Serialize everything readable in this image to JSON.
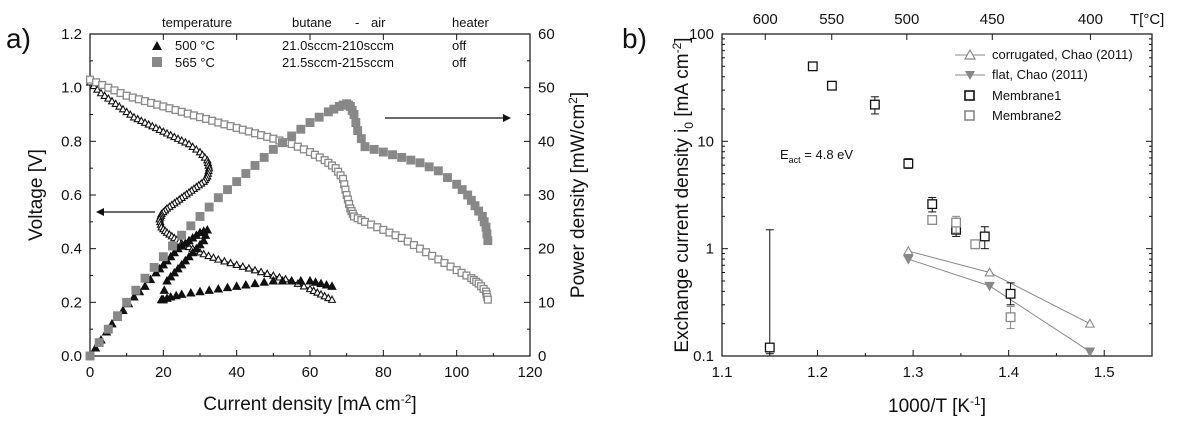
{
  "chart_data": [
    {
      "panel_label": "a)",
      "type": "scatter",
      "xlabel": "Current density [mA cm-2]",
      "xlabel_parts": [
        "Current density [mA cm",
        "-2",
        "]"
      ],
      "ylabel_left": "Voltage [V]",
      "ylabel_right": "Power density [mW/cm2]",
      "ylabel_right_parts": [
        "Power density [mW/cm",
        "2",
        "]"
      ],
      "xlim": [
        0,
        120
      ],
      "ylim_left": [
        0.0,
        1.2
      ],
      "ylim_right": [
        0,
        60
      ],
      "x_ticks": [
        "0",
        "20",
        "40",
        "60",
        "80",
        "100",
        "120"
      ],
      "y_left_ticks": [
        "0.0",
        "0.2",
        "0.4",
        "0.6",
        "0.8",
        "1.0",
        "1.2"
      ],
      "y_right_ticks": [
        "0",
        "10",
        "20",
        "30",
        "40",
        "50",
        "60"
      ],
      "legend": {
        "headers": [
          "temperature",
          "butane",
          "-",
          "air",
          "heater"
        ],
        "rows": [
          {
            "temperature": "500 °C",
            "flow": "21.0sccm-210sccm",
            "heater": "off",
            "marker": "triangle"
          },
          {
            "temperature": "565 °C",
            "flow": "21.5sccm-215sccm",
            "heater": "off",
            "marker": "square"
          }
        ]
      },
      "series": [
        {
          "temperature": "500 °C",
          "kind": "voltage",
          "axis": "left",
          "marker": "open-triangle",
          "x": [
            0,
            3,
            6,
            9,
            12,
            15,
            18,
            21,
            24,
            27,
            30,
            32,
            32.5,
            32,
            31,
            29,
            27,
            25,
            23,
            21,
            19.5,
            19,
            19.5,
            21,
            23,
            25,
            28,
            31,
            35,
            40,
            45,
            50,
            55,
            60,
            63,
            66
          ],
          "y": [
            1.02,
            0.98,
            0.95,
            0.92,
            0.89,
            0.87,
            0.85,
            0.83,
            0.81,
            0.79,
            0.76,
            0.73,
            0.7,
            0.67,
            0.65,
            0.63,
            0.61,
            0.59,
            0.57,
            0.55,
            0.53,
            0.51,
            0.48,
            0.46,
            0.44,
            0.42,
            0.4,
            0.38,
            0.36,
            0.34,
            0.32,
            0.3,
            0.28,
            0.25,
            0.23,
            0.21
          ]
        },
        {
          "temperature": "500 °C",
          "kind": "power",
          "axis": "right",
          "marker": "filled-triangle",
          "x": [
            0,
            3,
            6,
            9,
            12,
            15,
            18,
            20,
            22,
            24,
            26,
            28,
            30,
            32,
            31,
            29,
            27,
            25,
            23,
            21,
            19.5,
            20,
            22,
            25,
            30,
            35,
            40,
            45,
            50,
            55,
            60,
            63,
            66
          ],
          "y": [
            0,
            3,
            6,
            8.5,
            11,
            13,
            15.5,
            17,
            18.5,
            20,
            21,
            22,
            23,
            23.5,
            21.5,
            20,
            18.5,
            17,
            15.5,
            14,
            10.5,
            10.5,
            11,
            11.5,
            12,
            12.5,
            13,
            13.5,
            14,
            14,
            14,
            13.5,
            13
          ]
        },
        {
          "temperature": "565 °C",
          "kind": "voltage",
          "axis": "left",
          "marker": "open-square",
          "x": [
            0,
            5,
            10,
            15,
            20,
            25,
            30,
            35,
            40,
            45,
            50,
            55,
            60,
            64,
            67,
            69,
            70,
            71,
            72,
            75,
            80,
            85,
            90,
            95,
            100,
            104,
            106,
            108,
            108.5
          ],
          "y": [
            1.03,
            1.0,
            0.97,
            0.95,
            0.93,
            0.91,
            0.89,
            0.87,
            0.85,
            0.83,
            0.81,
            0.79,
            0.76,
            0.73,
            0.7,
            0.66,
            0.6,
            0.55,
            0.52,
            0.5,
            0.47,
            0.44,
            0.4,
            0.36,
            0.32,
            0.29,
            0.27,
            0.24,
            0.21
          ]
        },
        {
          "temperature": "565 °C",
          "kind": "power",
          "axis": "right",
          "marker": "filled-square",
          "x": [
            0,
            5,
            10,
            15,
            20,
            25,
            30,
            35,
            40,
            45,
            50,
            55,
            60,
            65,
            68,
            70,
            71,
            72,
            73,
            75,
            80,
            85,
            90,
            95,
            100,
            103,
            105,
            107,
            108,
            108.5
          ],
          "y": [
            0,
            5,
            10,
            14.5,
            18.5,
            22.5,
            26,
            29.5,
            32.5,
            35.5,
            38.5,
            41,
            43.5,
            45.5,
            46.5,
            47,
            46.5,
            45,
            42,
            39,
            38,
            37,
            36,
            34.5,
            32,
            30,
            28,
            26,
            24,
            21.5
          ]
        }
      ],
      "arrows": [
        "left arrow pointing to Voltage axis",
        "right arrow pointing to Power density axis"
      ]
    },
    {
      "panel_label": "b)",
      "type": "scatter",
      "xlabel": "1000/T [K-1]",
      "xlabel_parts": [
        "1000/T [K",
        "-1",
        "]"
      ],
      "ylabel": "Exchange current density i0 [mA cm-2]",
      "ylabel_parts": [
        "Exchange current density i",
        "0",
        " [mA cm",
        "-2",
        "]"
      ],
      "top_axis_label": "T[°C]",
      "top_axis_ticks": [
        "600",
        "550",
        "500",
        "450",
        "400"
      ],
      "top_axis_tick_values_C": [
        600,
        550,
        500,
        450,
        400
      ],
      "xlim": [
        1.1,
        1.55
      ],
      "ylim": [
        0.1,
        100
      ],
      "yscale": "log",
      "x_ticks": [
        "1.1",
        "1.2",
        "1.3",
        "1.4",
        "1.5"
      ],
      "y_ticks": [
        "0.1",
        "1",
        "10",
        "100"
      ],
      "annotation": {
        "text": "E",
        "sub": "act",
        "rest": " = 4.8 eV"
      },
      "legend_labels": [
        "corrugated, Chao (2011)",
        "flat, Chao (2011)",
        "Membrane1",
        "Membrane2"
      ],
      "series": [
        {
          "name": "corrugated, Chao (2011)",
          "marker": "open-triangle",
          "color": "#888888",
          "x": [
            1.295,
            1.38,
            1.485
          ],
          "y": [
            0.95,
            0.6,
            0.2
          ]
        },
        {
          "name": "flat, Chao (2011)",
          "marker": "filled-triangle-down",
          "color": "#888888",
          "x": [
            1.295,
            1.38,
            1.485
          ],
          "y": [
            0.8,
            0.45,
            0.11
          ]
        },
        {
          "name": "Membrane1",
          "marker": "open-square",
          "color": "#111111",
          "x": [
            1.15,
            1.195,
            1.215,
            1.26,
            1.295,
            1.32,
            1.345,
            1.375,
            1.402
          ],
          "y": [
            0.12,
            50,
            33,
            22,
            6.2,
            2.6,
            1.5,
            1.3,
            0.38
          ],
          "err_low": [
            0.105,
            48,
            31,
            18,
            5.6,
            2.2,
            1.3,
            1.0,
            0.3
          ],
          "err_high": [
            1.5,
            52,
            35,
            26,
            6.9,
            3.0,
            1.75,
            1.6,
            0.48
          ]
        },
        {
          "name": "Membrane2",
          "marker": "open-square",
          "color": "#888888",
          "x": [
            1.32,
            1.345,
            1.365,
            1.402
          ],
          "y": [
            1.85,
            1.75,
            1.1,
            0.23
          ],
          "err_low": [
            1.7,
            1.4,
            1.0,
            0.18
          ],
          "err_high": [
            2.0,
            2.0,
            1.2,
            0.29
          ]
        }
      ]
    }
  ],
  "colors": {
    "black": "#111111",
    "gray": "#888888",
    "axis": "#111111"
  }
}
